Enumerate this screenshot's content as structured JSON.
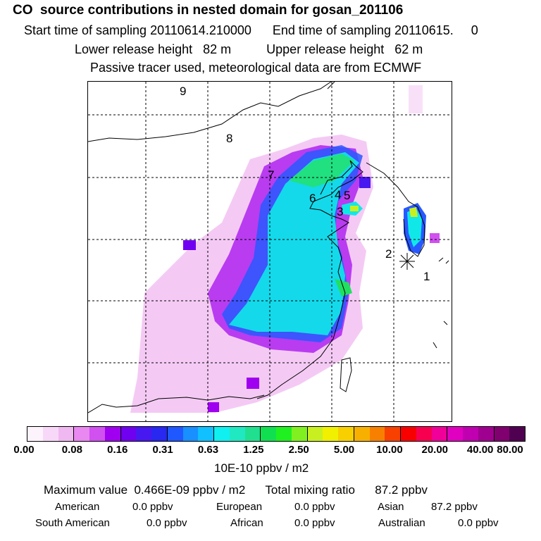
{
  "header": {
    "title": "CO  source contributions in nested domain for gosan_201106",
    "sampling_start_label": "Start time of sampling 20110614.210000",
    "sampling_end_label": "End time of sampling 20110615.     0",
    "lower_release": "Lower release height   82 m",
    "upper_release": "Upper release height   62 m",
    "tracer_note": "Passive tracer used, meteorological data are from ECMWF"
  },
  "map": {
    "region_labels": [
      "1",
      "2",
      "3",
      "4",
      "5",
      "6",
      "7",
      "8",
      "9"
    ],
    "station_marker": "asterisk-station-icon"
  },
  "colorbar": {
    "colors": [
      "#fdf3fd",
      "#f8d8f8",
      "#f0b8f0",
      "#e888f0",
      "#d050f0",
      "#a000f0",
      "#7000f0",
      "#4818f0",
      "#2828f0",
      "#2058ff",
      "#1890ff",
      "#10c0ff",
      "#10f0f0",
      "#20e8c0",
      "#20e090",
      "#10e050",
      "#20f020",
      "#80f020",
      "#c8f020",
      "#f0f000",
      "#f8d000",
      "#f8b000",
      "#f88000",
      "#f84000",
      "#f80000",
      "#f80050",
      "#f00098",
      "#e000c0",
      "#c000b0",
      "#a00090",
      "#800070",
      "#500050"
    ],
    "tick_labels": [
      "0.00",
      "0.08",
      "0.16",
      "0.31",
      "0.63",
      "1.25",
      "2.50",
      "5.00",
      "10.00",
      "20.00",
      "40.00",
      "80.00"
    ],
    "units": "10E-10 ppbv / m2"
  },
  "summary": {
    "max_line": "Maximum value  0.466E-09 ppbv / m2",
    "total_line": "Total mixing ratio      87.2 ppbv",
    "contributions": [
      {
        "label": "American",
        "value": "0.0 ppbv"
      },
      {
        "label": "European",
        "value": "0.0 ppbv"
      },
      {
        "label": "Asian",
        "value": "87.2 ppbv"
      },
      {
        "label": "South American",
        "value": "0.0 ppbv"
      },
      {
        "label": "African",
        "value": "0.0 ppbv"
      },
      {
        "label": "Australian",
        "value": "0.0 ppbv"
      }
    ]
  }
}
